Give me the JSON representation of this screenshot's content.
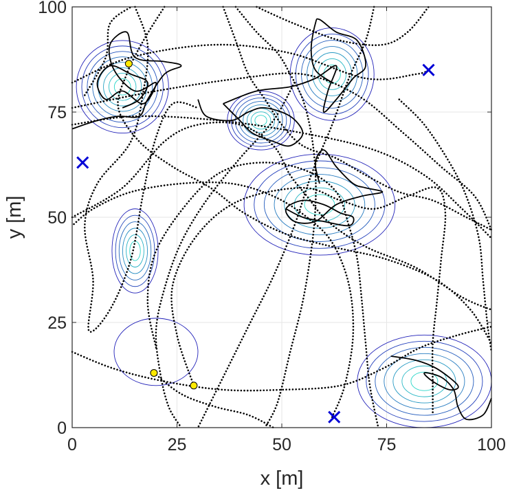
{
  "chart_data": {
    "type": "scatter",
    "title": "",
    "xlabel": "x [m]",
    "ylabel": "y [m]",
    "xlim": [
      0,
      100
    ],
    "ylim": [
      0,
      100
    ],
    "xticks": [
      "0",
      "25",
      "50",
      "75",
      "100"
    ],
    "yticks": [
      "0",
      "25",
      "50",
      "75",
      "100"
    ],
    "grid": true,
    "colors": {
      "trajectory": "#000000",
      "marker_x": "#0000d6",
      "marker_point": "#ffea00",
      "contour_outer": "#1f1fb8",
      "contour_inner": "#2ad6c8",
      "grid": "#e6e6e6",
      "axis": "#262626"
    },
    "contour_peaks": [
      {
        "center": [
          12,
          81
        ],
        "radius": [
          11,
          11
        ],
        "levels": 8
      },
      {
        "center": [
          45,
          73
        ],
        "radius": [
          8,
          7
        ],
        "levels": 8
      },
      {
        "center": [
          62,
          84
        ],
        "radius": [
          10,
          11
        ],
        "levels": 7
      },
      {
        "center": [
          59,
          53
        ],
        "radius": [
          18,
          12
        ],
        "levels": 7
      },
      {
        "center": [
          15,
          42
        ],
        "radius": [
          5.5,
          10
        ],
        "levels": 6
      },
      {
        "center": [
          20,
          18
        ],
        "radius": [
          10,
          8
        ],
        "levels": 1
      },
      {
        "center": [
          84,
          11
        ],
        "radius": [
          16,
          11
        ],
        "levels": 7
      }
    ],
    "x_markers": [
      {
        "x": 2.5,
        "y": 63
      },
      {
        "x": 85,
        "y": 85
      },
      {
        "x": 62.5,
        "y": 2.5
      }
    ],
    "point_markers": [
      {
        "x": 13.5,
        "y": 86.5
      },
      {
        "x": 19.5,
        "y": 13
      },
      {
        "x": 29,
        "y": 10
      }
    ],
    "dotted_paths": [
      [
        [
          3,
          79
        ],
        [
          8,
          88
        ],
        [
          9,
          96
        ],
        [
          14,
          100
        ]
      ],
      [
        [
          0,
          82
        ],
        [
          14,
          88
        ],
        [
          34,
          91
        ],
        [
          52,
          89
        ],
        [
          70,
          83
        ],
        [
          82,
          84
        ],
        [
          85,
          85
        ]
      ],
      [
        [
          0,
          76
        ],
        [
          20,
          80
        ],
        [
          40,
          83
        ],
        [
          55,
          84
        ],
        [
          68,
          79
        ],
        [
          79,
          70
        ],
        [
          88,
          62
        ],
        [
          96,
          55
        ],
        [
          100,
          47
        ]
      ],
      [
        [
          0,
          72
        ],
        [
          15,
          74
        ],
        [
          35,
          73
        ],
        [
          55,
          70
        ],
        [
          72,
          66
        ],
        [
          84,
          60
        ],
        [
          93,
          52
        ],
        [
          100,
          45
        ]
      ],
      [
        [
          15,
          100
        ],
        [
          18,
          91
        ],
        [
          17,
          80
        ],
        [
          14,
          68
        ],
        [
          6,
          58
        ],
        [
          3,
          48
        ],
        [
          5,
          35
        ],
        [
          4,
          23
        ],
        [
          9,
          28
        ],
        [
          14,
          40
        ],
        [
          17,
          56
        ],
        [
          20,
          69
        ],
        [
          24,
          77
        ],
        [
          30,
          76
        ]
      ],
      [
        [
          0,
          50
        ],
        [
          12,
          57
        ],
        [
          22,
          68
        ],
        [
          30,
          72
        ],
        [
          40,
          72
        ],
        [
          48,
          67
        ],
        [
          52,
          60
        ],
        [
          56,
          55
        ],
        [
          61,
          49
        ],
        [
          70,
          43
        ],
        [
          82,
          38
        ],
        [
          93,
          31
        ],
        [
          100,
          28
        ]
      ],
      [
        [
          36,
          100
        ],
        [
          39,
          92
        ],
        [
          42,
          84
        ],
        [
          46,
          78
        ],
        [
          50,
          72
        ],
        [
          55,
          67
        ],
        [
          63,
          64
        ],
        [
          70,
          60
        ],
        [
          78,
          56
        ],
        [
          86,
          54
        ],
        [
          94,
          50
        ],
        [
          100,
          47
        ]
      ],
      [
        [
          22,
          100
        ],
        [
          17,
          92
        ],
        [
          13,
          84
        ],
        [
          11,
          76
        ],
        [
          16,
          68
        ],
        [
          24,
          62
        ],
        [
          33,
          57
        ],
        [
          41,
          51
        ],
        [
          51,
          46
        ],
        [
          62,
          43
        ],
        [
          75,
          40
        ],
        [
          87,
          35
        ],
        [
          95,
          28
        ],
        [
          100,
          20
        ]
      ],
      [
        [
          53,
          82
        ],
        [
          48,
          73
        ],
        [
          40,
          64
        ],
        [
          32,
          54
        ],
        [
          26,
          44
        ],
        [
          22,
          33
        ],
        [
          20,
          23
        ],
        [
          21,
          13
        ],
        [
          23,
          5
        ],
        [
          26,
          0
        ]
      ],
      [
        [
          20,
          19
        ],
        [
          18,
          30
        ],
        [
          20,
          42
        ],
        [
          28,
          54
        ],
        [
          36,
          61
        ],
        [
          46,
          63
        ],
        [
          56,
          61
        ],
        [
          63,
          56
        ],
        [
          66,
          48
        ],
        [
          68,
          40
        ],
        [
          69,
          31
        ],
        [
          70,
          20
        ],
        [
          71,
          10
        ],
        [
          73,
          0
        ]
      ],
      [
        [
          29,
          10
        ],
        [
          25,
          22
        ],
        [
          24,
          34
        ],
        [
          30,
          46
        ],
        [
          40,
          54
        ],
        [
          55,
          57
        ],
        [
          64,
          54
        ],
        [
          72,
          52
        ],
        [
          80,
          55
        ],
        [
          87,
          57
        ],
        [
          89,
          51
        ],
        [
          88,
          40
        ],
        [
          87,
          30
        ],
        [
          86,
          20
        ],
        [
          86,
          10
        ],
        [
          86,
          3
        ]
      ],
      [
        [
          19.5,
          13
        ],
        [
          26,
          8
        ],
        [
          34,
          5
        ],
        [
          42,
          3
        ],
        [
          48,
          0
        ]
      ],
      [
        [
          0,
          18
        ],
        [
          10,
          14
        ],
        [
          22,
          11
        ],
        [
          36,
          9
        ],
        [
          50,
          9
        ],
        [
          64,
          10
        ],
        [
          74,
          14
        ],
        [
          83,
          19
        ],
        [
          92,
          22
        ],
        [
          100,
          24
        ]
      ],
      [
        [
          39,
          100
        ],
        [
          44,
          94
        ],
        [
          49,
          89
        ],
        [
          52,
          84
        ],
        [
          55,
          78
        ],
        [
          57,
          70
        ],
        [
          58,
          61
        ],
        [
          58,
          52
        ],
        [
          57,
          42
        ],
        [
          55,
          30
        ],
        [
          52,
          18
        ],
        [
          49,
          6
        ],
        [
          46,
          0
        ]
      ],
      [
        [
          72,
          100
        ],
        [
          70,
          92
        ],
        [
          66,
          83
        ],
        [
          62,
          72
        ],
        [
          57,
          60
        ],
        [
          53,
          48
        ],
        [
          48,
          36
        ],
        [
          42,
          24
        ],
        [
          36,
          12
        ],
        [
          30,
          0
        ]
      ],
      [
        [
          62,
          2.5
        ],
        [
          65,
          10
        ],
        [
          67,
          22
        ],
        [
          66,
          34
        ],
        [
          62,
          44
        ],
        [
          56,
          50
        ],
        [
          48,
          55
        ],
        [
          38,
          58
        ],
        [
          26,
          58
        ],
        [
          14,
          56
        ],
        [
          5,
          52
        ],
        [
          0,
          48
        ]
      ],
      [
        [
          78,
          78
        ],
        [
          84,
          72
        ],
        [
          90,
          63
        ],
        [
          94,
          55
        ],
        [
          97,
          45
        ],
        [
          98,
          35
        ],
        [
          99,
          25
        ],
        [
          100,
          18
        ]
      ],
      [
        [
          44,
          100
        ],
        [
          53,
          96
        ],
        [
          64,
          92
        ],
        [
          74,
          91
        ],
        [
          80,
          94
        ],
        [
          85,
          100
        ]
      ]
    ],
    "solid_paths": [
      [
        [
          0,
          71
        ],
        [
          6,
          73
        ],
        [
          11,
          74
        ],
        [
          16,
          74
        ],
        [
          18,
          78
        ],
        [
          22,
          84
        ],
        [
          26,
          86
        ],
        [
          22,
          87
        ],
        [
          15,
          88
        ],
        [
          13,
          94
        ],
        [
          9,
          91
        ],
        [
          10,
          85
        ],
        [
          15,
          80
        ],
        [
          20,
          82
        ],
        [
          17,
          77
        ],
        [
          12,
          80
        ],
        [
          8,
          78
        ],
        [
          6,
          82
        ],
        [
          9,
          86
        ],
        [
          14,
          84
        ],
        [
          18,
          82
        ],
        [
          16,
          78
        ],
        [
          12,
          76
        ]
      ],
      [
        [
          36,
          77
        ],
        [
          44,
          80
        ],
        [
          52,
          81
        ],
        [
          58,
          83
        ],
        [
          63,
          86
        ],
        [
          61,
          80
        ],
        [
          60,
          75
        ],
        [
          63,
          78
        ],
        [
          67,
          83
        ],
        [
          70,
          86
        ],
        [
          68,
          92
        ],
        [
          63,
          94
        ],
        [
          59,
          97
        ],
        [
          58,
          96
        ],
        [
          57,
          90
        ],
        [
          58,
          85
        ],
        [
          62,
          82
        ]
      ],
      [
        [
          59,
          58
        ],
        [
          58,
          63
        ],
        [
          60,
          66
        ],
        [
          63,
          62
        ],
        [
          67,
          58
        ],
        [
          70,
          57
        ],
        [
          74,
          56
        ],
        [
          69,
          55
        ],
        [
          63,
          53
        ],
        [
          58,
          49
        ],
        [
          53,
          49
        ],
        [
          51,
          52
        ],
        [
          55,
          54
        ],
        [
          60,
          53
        ],
        [
          64,
          51
        ],
        [
          67,
          50
        ],
        [
          66,
          48
        ],
        [
          60,
          49
        ],
        [
          55,
          50
        ],
        [
          51,
          52
        ]
      ],
      [
        [
          76,
          17
        ],
        [
          82,
          16
        ],
        [
          87,
          14
        ],
        [
          92,
          10
        ],
        [
          90,
          9
        ],
        [
          86,
          11
        ],
        [
          84,
          13
        ],
        [
          88,
          12
        ],
        [
          91,
          9
        ],
        [
          92,
          5
        ],
        [
          94,
          2
        ],
        [
          98,
          3
        ],
        [
          100,
          7
        ]
      ],
      [
        [
          30,
          78
        ],
        [
          32,
          74
        ],
        [
          38,
          73
        ],
        [
          42,
          75
        ],
        [
          46,
          76
        ],
        [
          52,
          74
        ],
        [
          55,
          70
        ],
        [
          52,
          67
        ],
        [
          48,
          68
        ],
        [
          43,
          70
        ],
        [
          40,
          73
        ],
        [
          36,
          77
        ]
      ]
    ]
  }
}
